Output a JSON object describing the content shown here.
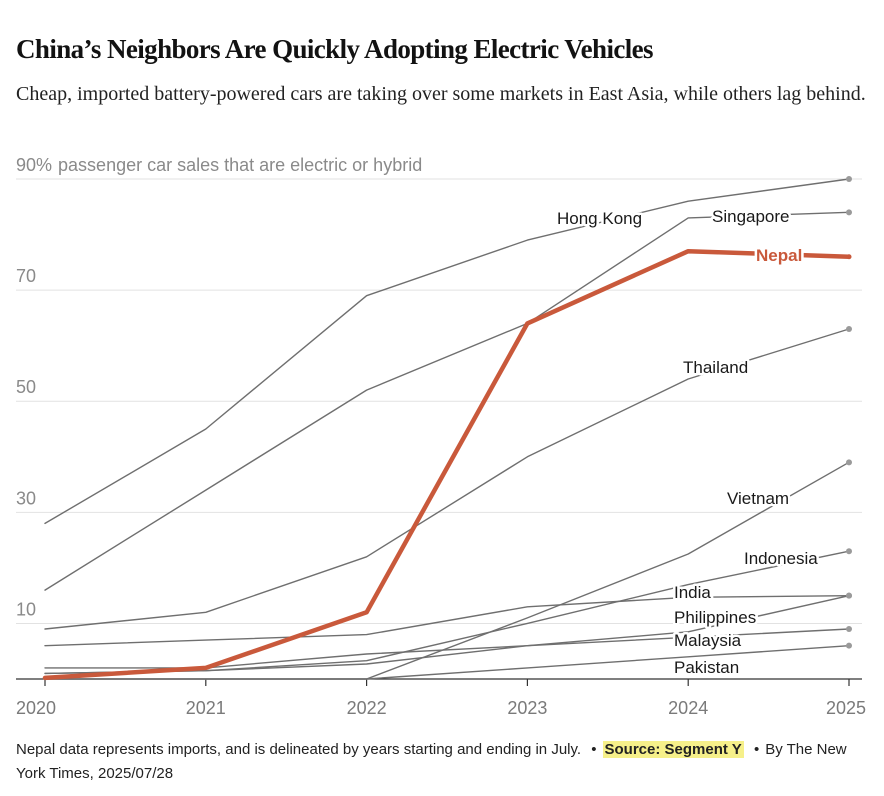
{
  "header": {
    "title": "China’s Neighbors Are Quickly Adopting Electric Vehicles",
    "subtitle": "Cheap, imported battery-powered cars are taking over some markets in East Asia, while others lag behind."
  },
  "chart_data": {
    "type": "line",
    "title": "China’s Neighbors Are Quickly Adopting Electric Vehicles",
    "ylabel": "passenger car sales that are electric or hybrid",
    "xlabel": "",
    "x": [
      2020,
      2021,
      2022,
      2023,
      2024,
      2025
    ],
    "ylim": [
      0,
      90
    ],
    "yticks": [
      10,
      30,
      50,
      70,
      90
    ],
    "ytick_labels": [
      "10",
      "30",
      "50",
      "70",
      "90%"
    ],
    "xtick_labels": [
      "2020",
      "2021",
      "2022",
      "2023",
      "2024",
      "2025"
    ],
    "grid": true,
    "highlight_color": "#c9593b",
    "base_color": "#6f6f6f",
    "series": [
      {
        "name": "Hong Kong",
        "values": [
          28,
          45,
          69,
          79,
          86,
          90
        ]
      },
      {
        "name": "Singapore",
        "values": [
          16,
          34,
          52,
          64,
          83,
          84
        ]
      },
      {
        "name": "Nepal",
        "values": [
          0.2,
          2,
          12,
          64,
          77,
          76
        ],
        "highlight": true
      },
      {
        "name": "Thailand",
        "values": [
          9,
          12,
          22,
          40,
          54,
          63
        ]
      },
      {
        "name": "Vietnam",
        "values": [
          0,
          0,
          0,
          11,
          22.5,
          39
        ]
      },
      {
        "name": "Indonesia",
        "values": [
          1,
          1.5,
          3.3,
          10,
          17,
          23
        ]
      },
      {
        "name": "India",
        "values": [
          6,
          7,
          8,
          13,
          14.7,
          15
        ]
      },
      {
        "name": "Philippines",
        "values": [
          1,
          1.5,
          2.7,
          6,
          8.5,
          15
        ]
      },
      {
        "name": "Malaysia",
        "values": [
          2,
          2,
          4.5,
          6,
          7.5,
          9
        ]
      },
      {
        "name": "Pakistan",
        "values": [
          0,
          0,
          0,
          2,
          4,
          6
        ]
      }
    ],
    "labels": [
      {
        "series": "Hong Kong",
        "text": "Hong Kong"
      },
      {
        "series": "Singapore",
        "text": "Singapore"
      },
      {
        "series": "Nepal",
        "text": "Nepal"
      },
      {
        "series": "Thailand",
        "text": "Thailand"
      },
      {
        "series": "Vietnam",
        "text": "Vietnam"
      },
      {
        "series": "Indonesia",
        "text": "Indonesia"
      },
      {
        "series": "India",
        "text": "India"
      },
      {
        "series": "Philippines",
        "text": "Philippines"
      },
      {
        "series": "Malaysia",
        "text": "Malaysia"
      },
      {
        "series": "Pakistan",
        "text": "Pakistan"
      }
    ]
  },
  "footer": {
    "note": "Nepal data represents imports, and is delineated by years starting and ending in July.",
    "bullet": "•",
    "source": "Source: Segment Y",
    "credit": "By The New York Times, 2025/07/28"
  }
}
